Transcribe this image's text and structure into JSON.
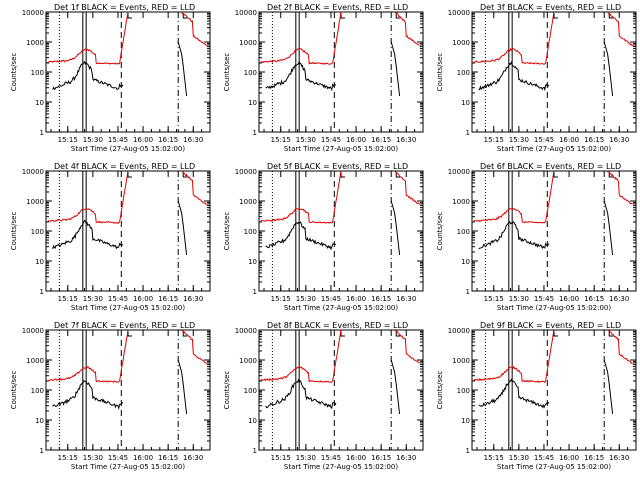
{
  "figure": {
    "colors": {
      "events": "#000000",
      "lld": "#e00000",
      "axes": "#000000",
      "background": "#ffffff"
    },
    "ylabel": "Counts/sec",
    "xlabel": "Start Time (27-Aug-05 15:02:00)"
  },
  "chart_data": [
    {
      "type": "line",
      "title": "Det 1f BLACK = Events, RED = LLD",
      "yscale": "log",
      "ylim": [
        1,
        10000
      ],
      "ytick_labels": [
        "1",
        "10",
        "100",
        "1000",
        "10000"
      ],
      "xtick_labels": [
        "15:15",
        "15:30",
        "15:45",
        "16:00",
        "16:15",
        "16:30"
      ],
      "xlim": [
        "15:02",
        "16:40"
      ],
      "series": [
        {
          "name": "Events",
          "color": "#000000"
        },
        {
          "name": "LLD",
          "color": "#e00000"
        }
      ]
    },
    {
      "type": "line",
      "title": "Det 2f BLACK = Events, RED = LLD",
      "yscale": "log",
      "ylim": [
        1,
        10000
      ],
      "ytick_labels": [
        "1",
        "10",
        "100",
        "1000",
        "10000"
      ],
      "xtick_labels": [
        "15:15",
        "15:30",
        "15:45",
        "16:00",
        "16:15",
        "16:30"
      ],
      "xlim": [
        "15:02",
        "16:40"
      ],
      "series": [
        {
          "name": "Events",
          "color": "#000000"
        },
        {
          "name": "LLD",
          "color": "#e00000"
        }
      ]
    },
    {
      "type": "line",
      "title": "Det 3f BLACK = Events, RED = LLD",
      "yscale": "log",
      "ylim": [
        1,
        10000
      ],
      "ytick_labels": [
        "1",
        "10",
        "100",
        "1000",
        "10000"
      ],
      "xtick_labels": [
        "15:15",
        "15:30",
        "15:45",
        "16:00",
        "16:15",
        "16:30"
      ],
      "xlim": [
        "15:02",
        "16:40"
      ],
      "series": [
        {
          "name": "Events",
          "color": "#000000"
        },
        {
          "name": "LLD",
          "color": "#e00000"
        }
      ]
    },
    {
      "type": "line",
      "title": "Det 4f BLACK = Events, RED = LLD",
      "yscale": "log",
      "ylim": [
        1,
        10000
      ],
      "ytick_labels": [
        "1",
        "10",
        "100",
        "1000",
        "10000"
      ],
      "xtick_labels": [
        "15:15",
        "15:30",
        "15:45",
        "16:00",
        "16:15",
        "16:30"
      ],
      "xlim": [
        "15:02",
        "16:40"
      ],
      "series": [
        {
          "name": "Events",
          "color": "#000000"
        },
        {
          "name": "LLD",
          "color": "#e00000"
        }
      ]
    },
    {
      "type": "line",
      "title": "Det 5f BLACK = Events, RED = LLD",
      "yscale": "log",
      "ylim": [
        1,
        10000
      ],
      "ytick_labels": [
        "1",
        "10",
        "100",
        "1000",
        "10000"
      ],
      "xtick_labels": [
        "15:15",
        "15:30",
        "15:45",
        "16:00",
        "16:15",
        "16:30"
      ],
      "xlim": [
        "15:02",
        "16:40"
      ],
      "series": [
        {
          "name": "Events",
          "color": "#000000"
        },
        {
          "name": "LLD",
          "color": "#e00000"
        }
      ]
    },
    {
      "type": "line",
      "title": "Det 6f BLACK = Events, RED = LLD",
      "yscale": "log",
      "ylim": [
        1,
        10000
      ],
      "ytick_labels": [
        "1",
        "10",
        "100",
        "1000",
        "10000"
      ],
      "xtick_labels": [
        "15:15",
        "15:30",
        "15:45",
        "16:00",
        "16:15",
        "16:30"
      ],
      "xlim": [
        "15:02",
        "16:40"
      ],
      "series": [
        {
          "name": "Events",
          "color": "#000000"
        },
        {
          "name": "LLD",
          "color": "#e00000"
        }
      ]
    },
    {
      "type": "line",
      "title": "Det 7f BLACK = Events, RED = LLD",
      "yscale": "log",
      "ylim": [
        1,
        10000
      ],
      "ytick_labels": [
        "1",
        "10",
        "100",
        "1000",
        "10000"
      ],
      "xtick_labels": [
        "15:15",
        "15:30",
        "15:45",
        "16:00",
        "16:15",
        "16:30"
      ],
      "xlim": [
        "15:02",
        "16:40"
      ],
      "series": [
        {
          "name": "Events",
          "color": "#000000"
        },
        {
          "name": "LLD",
          "color": "#e00000"
        }
      ]
    },
    {
      "type": "line",
      "title": "Det 8f BLACK = Events, RED = LLD",
      "yscale": "log",
      "ylim": [
        1,
        10000
      ],
      "ytick_labels": [
        "1",
        "10",
        "100",
        "1000",
        "10000"
      ],
      "xtick_labels": [
        "15:15",
        "15:30",
        "15:45",
        "16:00",
        "16:15",
        "16:30"
      ],
      "xlim": [
        "15:02",
        "16:40"
      ],
      "series": [
        {
          "name": "Events",
          "color": "#000000"
        },
        {
          "name": "LLD",
          "color": "#e00000"
        }
      ]
    },
    {
      "type": "line",
      "title": "Det 9f BLACK = Events, RED = LLD",
      "yscale": "log",
      "ylim": [
        1,
        10000
      ],
      "ytick_labels": [
        "1",
        "10",
        "100",
        "1000",
        "10000"
      ],
      "xtick_labels": [
        "15:15",
        "15:30",
        "15:45",
        "16:00",
        "16:15",
        "16:30"
      ],
      "xlim": [
        "15:02",
        "16:40"
      ],
      "series": [
        {
          "name": "Events",
          "color": "#000000"
        },
        {
          "name": "LLD",
          "color": "#e00000"
        }
      ]
    }
  ]
}
